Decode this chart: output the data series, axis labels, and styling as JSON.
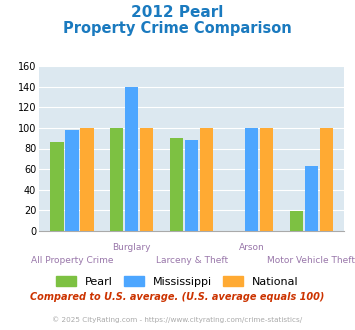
{
  "title_line1": "2012 Pearl",
  "title_line2": "Property Crime Comparison",
  "cat_top_labels": [
    "",
    "Burglary",
    "",
    "Arson",
    ""
  ],
  "cat_bot_labels": [
    "All Property Crime",
    "",
    "Larceny & Theft",
    "",
    "Motor Vehicle Theft"
  ],
  "pearl": [
    86,
    100,
    90,
    0,
    19
  ],
  "mississippi": [
    98,
    140,
    88,
    100,
    63
  ],
  "national": [
    100,
    100,
    100,
    100,
    100
  ],
  "pearl_color": "#7dc142",
  "mississippi_color": "#4da6ff",
  "national_color": "#ffaa33",
  "ylim": [
    0,
    160
  ],
  "yticks": [
    0,
    20,
    40,
    60,
    80,
    100,
    120,
    140,
    160
  ],
  "background_color": "#dce8f0",
  "title_color": "#1a7abf",
  "footer_note": "Compared to U.S. average. (U.S. average equals 100)",
  "footer_note_color": "#cc3300",
  "copyright": "© 2025 CityRating.com - https://www.cityrating.com/crime-statistics/",
  "copyright_color": "#aaaaaa",
  "label_color": "#9977aa",
  "legend_labels": [
    "Pearl",
    "Mississippi",
    "National"
  ],
  "bar_width": 0.22,
  "n_groups": 5
}
